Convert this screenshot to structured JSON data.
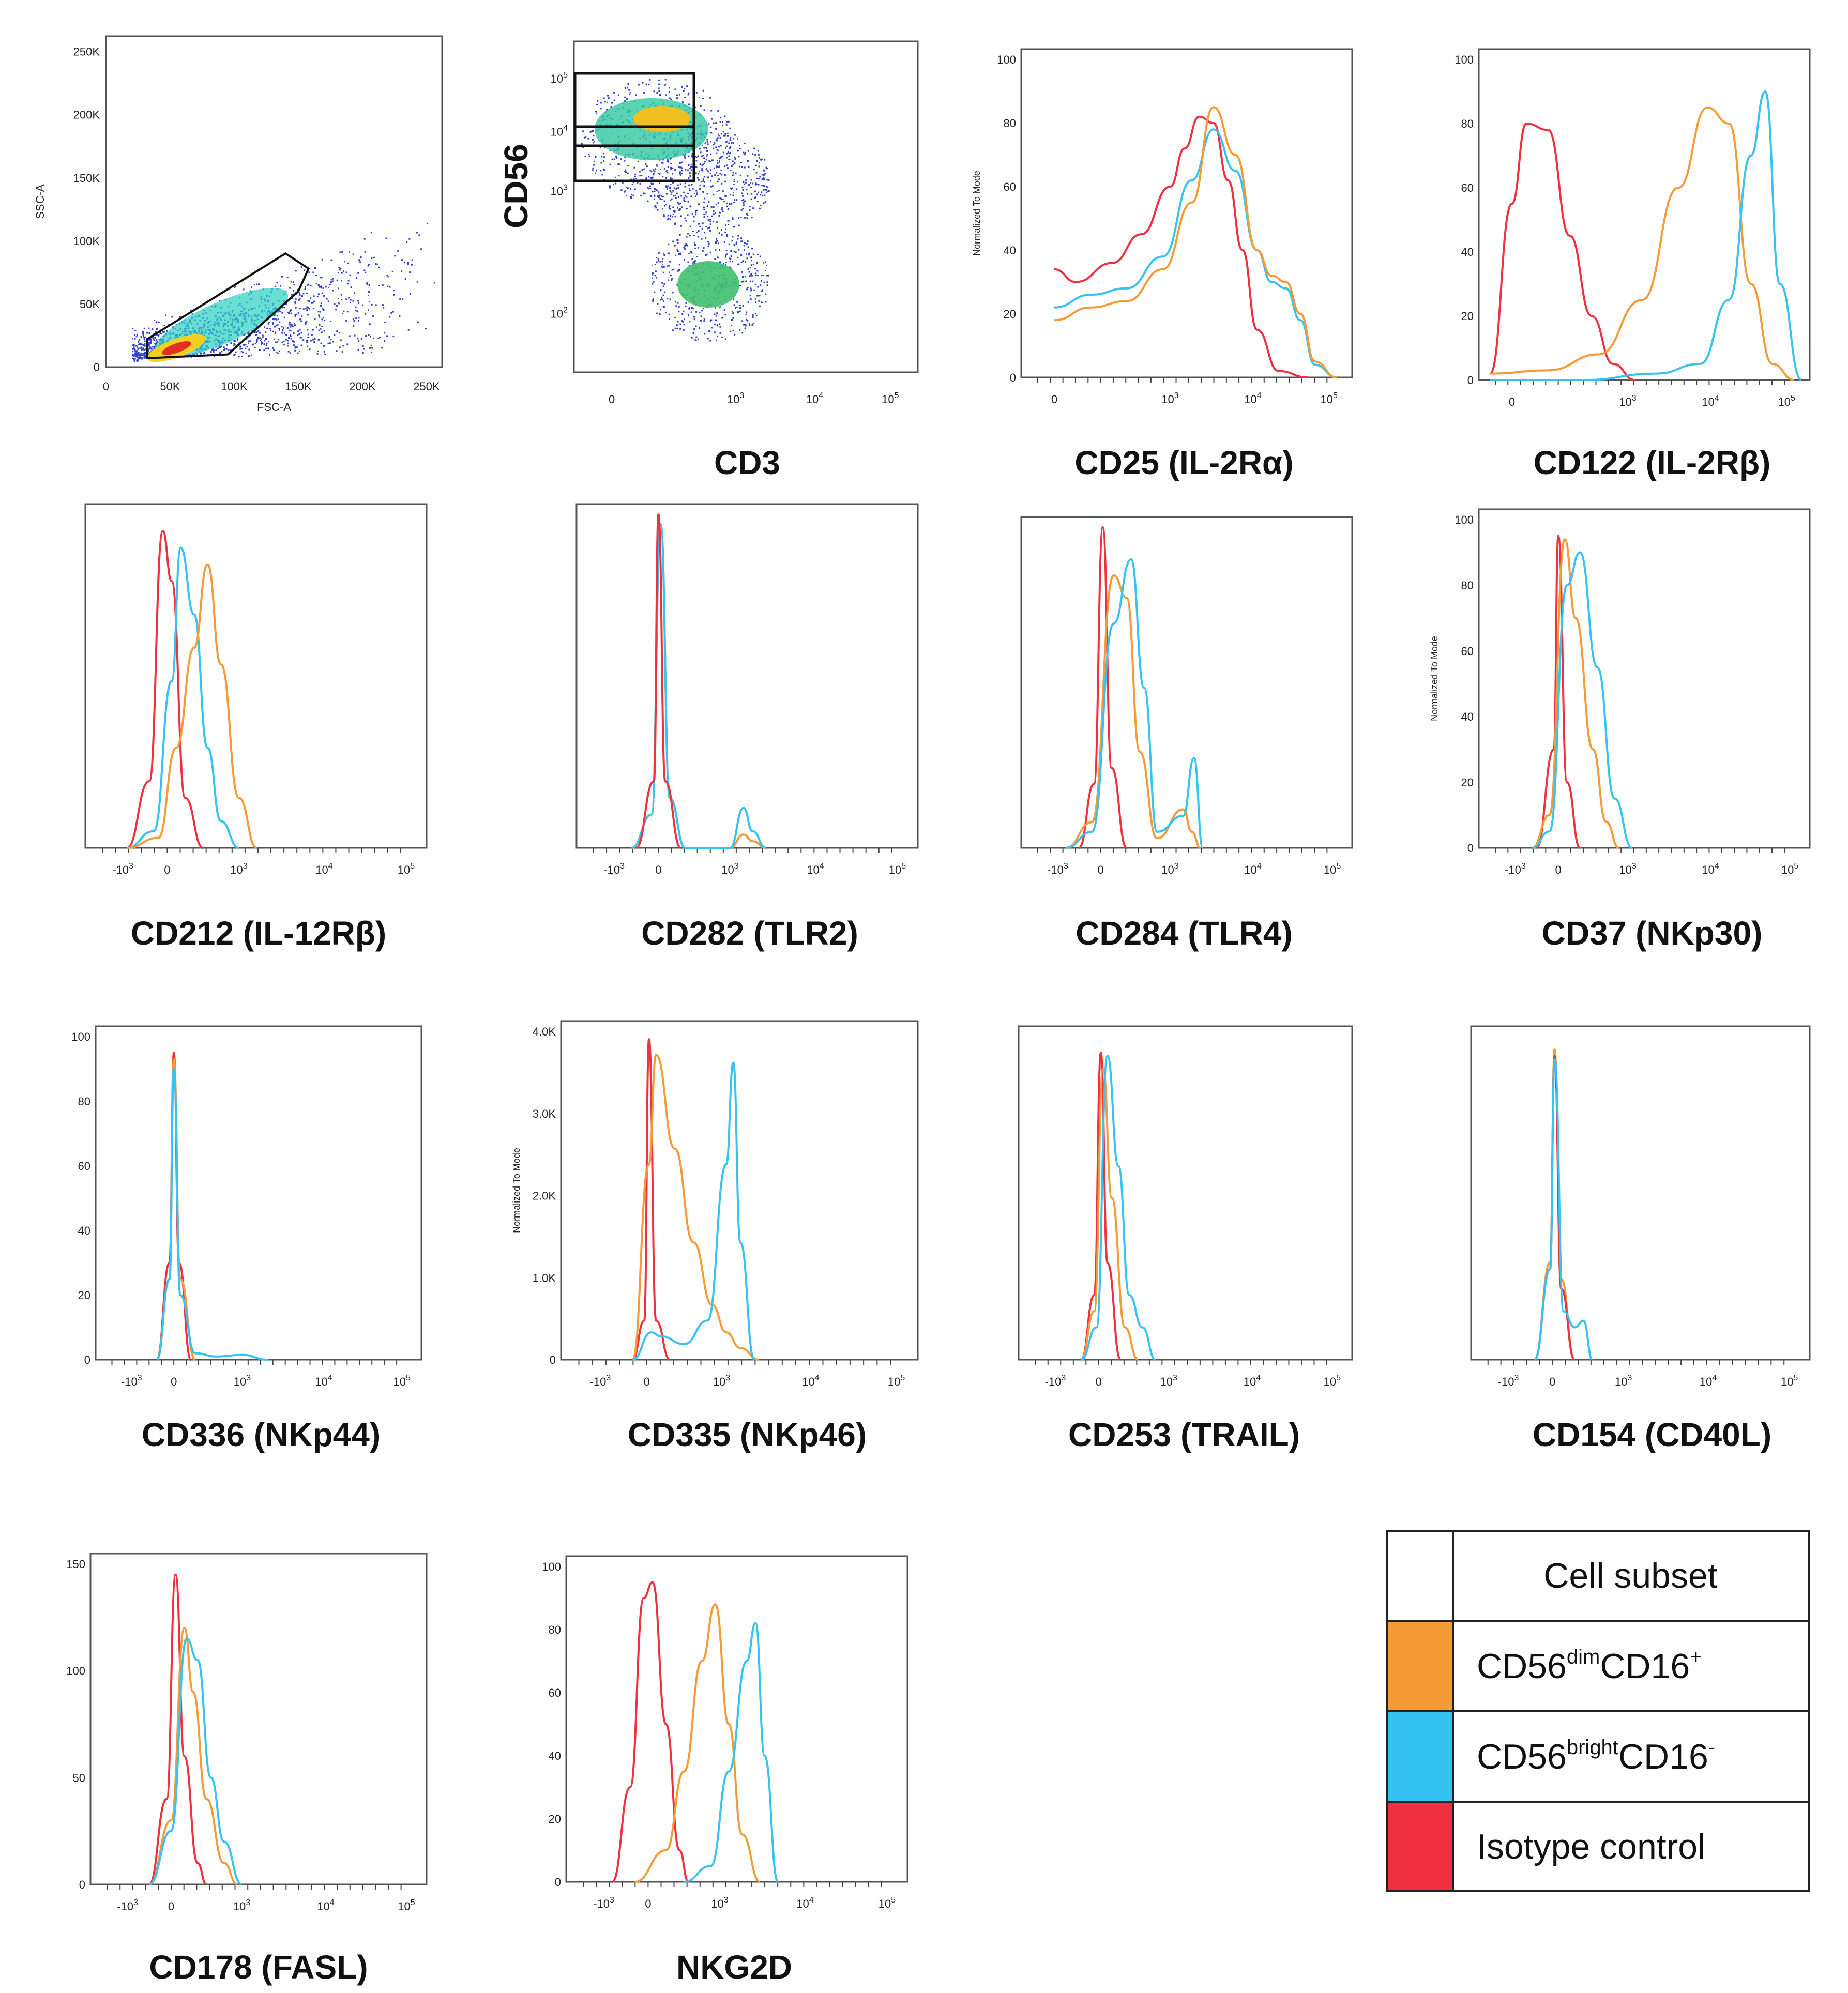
{
  "colors": {
    "dim": "#F59A35",
    "bright": "#35C3F2",
    "iso": "#F0303E"
  },
  "legend": {
    "header": "Cell subset",
    "dim": {
      "a": "CD56",
      "b": "dim",
      "c": "CD16",
      "d": "+"
    },
    "bright": {
      "a": "CD56",
      "b": "bright",
      "c": "CD16",
      "d": "-"
    },
    "iso": "Isotype  control"
  },
  "chart_data": [
    {
      "type": "scatter",
      "title": "",
      "xlabel": "FSC-A",
      "ylabel": "SSC-A",
      "xlim": [
        0,
        262144
      ],
      "ylim": [
        0,
        262144
      ],
      "xticks": [
        "0",
        "50K",
        "100K",
        "150K",
        "200K",
        "250K"
      ],
      "yticks": [
        "0",
        "50K",
        "100K",
        "150K",
        "200K",
        "250K"
      ],
      "gate": {
        "name": "lymphocyte gate",
        "x": [
          32000,
          140000,
          158000,
          150000,
          95000,
          32000
        ],
        "y": [
          22000,
          90000,
          78000,
          60000,
          10000,
          7000
        ]
      },
      "note": "density dot plot, main population near (55K, 15K)"
    },
    {
      "type": "scatter",
      "title": "",
      "xlabel": "CD3",
      "ylabel": "CD56",
      "scale": "biexponential",
      "xticks": [
        "0",
        "10^3",
        "10^4",
        "10^5"
      ],
      "yticks": [
        "10^2",
        "10^3",
        "10^4",
        "10^5"
      ],
      "gates": [
        "CD56bright CD3- gate",
        "CD56dim CD3- gate"
      ],
      "note": "density dot plot of lymphocytes"
    },
    {
      "type": "line",
      "title": "",
      "xlabel": "CD25 (IL-2Rα)",
      "ylabel": "Normalized To Mode",
      "ylim": [
        0,
        100
      ],
      "yticks": [
        "0",
        "20",
        "40",
        "60",
        "80",
        "100"
      ],
      "xticks": [
        "0",
        "10^3",
        "10^4",
        "10^5"
      ],
      "series": [
        {
          "name": "Isotype control",
          "color": "iso",
          "x": [
            0,
            0.3,
            0.8,
            1.2,
            1.6,
            1.8,
            2.0,
            2.2,
            2.4,
            2.6,
            2.8,
            3.1,
            3.5
          ],
          "y": [
            34,
            30,
            36,
            45,
            60,
            72,
            82,
            80,
            62,
            40,
            15,
            2,
            0
          ]
        },
        {
          "name": "CD56brightCD16-",
          "color": "bright",
          "x": [
            0,
            0.5,
            1.0,
            1.5,
            1.9,
            2.2,
            2.5,
            2.8,
            3.0,
            3.2,
            3.4,
            3.6,
            3.9
          ],
          "y": [
            22,
            26,
            28,
            38,
            62,
            78,
            65,
            40,
            30,
            28,
            18,
            4,
            0
          ]
        },
        {
          "name": "CD56dimCD16+",
          "color": "dim",
          "x": [
            0,
            0.5,
            1.0,
            1.5,
            1.9,
            2.2,
            2.5,
            2.8,
            3.0,
            3.2,
            3.4,
            3.6,
            3.9
          ],
          "y": [
            18,
            22,
            24,
            34,
            55,
            85,
            70,
            40,
            32,
            30,
            20,
            5,
            0
          ]
        }
      ]
    },
    {
      "type": "line",
      "title": "",
      "xlabel": "CD122 (IL-2Rβ)",
      "ylabel": "",
      "ylim": [
        0,
        100
      ],
      "yticks": [
        "0",
        "20",
        "40",
        "60",
        "80",
        "100"
      ],
      "xticks": [
        "0",
        "10^3",
        "10^4",
        "10^5"
      ],
      "series": [
        {
          "name": "Isotype control",
          "color": "iso",
          "x": [
            -0.3,
            0,
            0.2,
            0.5,
            0.8,
            1.1,
            1.4,
            1.7
          ],
          "y": [
            2,
            55,
            80,
            78,
            45,
            20,
            5,
            0
          ]
        },
        {
          "name": "CD56dimCD16+",
          "color": "dim",
          "x": [
            -0.3,
            0.5,
            1.2,
            1.8,
            2.3,
            2.7,
            3.0,
            3.3,
            3.6,
            3.9
          ],
          "y": [
            2,
            3,
            8,
            25,
            60,
            85,
            80,
            30,
            5,
            0
          ]
        },
        {
          "name": "CD56brightCD16-",
          "color": "bright",
          "x": [
            -0.3,
            1.0,
            2.0,
            2.6,
            3.0,
            3.3,
            3.5,
            3.7,
            4.0
          ],
          "y": [
            0,
            0,
            2,
            5,
            25,
            70,
            90,
            30,
            0
          ]
        }
      ]
    },
    {
      "type": "line",
      "title": "",
      "xlabel": "CD212 (IL-12Rβ)",
      "ylabel": "",
      "ylim": [
        0,
        100
      ],
      "xticks": [
        "-10^3",
        "0",
        "10^3",
        "10^4",
        "10^5"
      ],
      "series": [
        {
          "name": "Isotype control",
          "color": "iso",
          "x": [
            -0.9,
            -0.4,
            -0.1,
            0.1,
            0.4,
            0.8
          ],
          "y": [
            0,
            20,
            95,
            80,
            15,
            0
          ]
        },
        {
          "name": "CD56brightCD16-",
          "color": "bright",
          "x": [
            -0.9,
            -0.3,
            0.1,
            0.3,
            0.6,
            0.9,
            1.2,
            1.6
          ],
          "y": [
            0,
            5,
            50,
            90,
            70,
            30,
            8,
            0
          ]
        },
        {
          "name": "CD56dimCD16+",
          "color": "dim",
          "x": [
            -0.9,
            -0.2,
            0.2,
            0.6,
            0.9,
            1.2,
            1.6,
            2.0
          ],
          "y": [
            0,
            3,
            30,
            60,
            85,
            55,
            15,
            0
          ]
        }
      ]
    },
    {
      "type": "line",
      "title": "",
      "xlabel": "CD282 (TLR2)",
      "ylabel": "",
      "ylim": [
        0,
        100
      ],
      "xticks": [
        "-10^3",
        "0",
        "10^3",
        "10^4",
        "10^5"
      ],
      "series": [
        {
          "name": "CD56dimCD16+",
          "color": "dim",
          "x": [
            -0.6,
            -0.15,
            0.05,
            0.25,
            0.6,
            1.6,
            1.9,
            2.1,
            2.4
          ],
          "y": [
            0,
            10,
            97,
            15,
            0,
            0,
            4,
            2,
            0
          ]
        },
        {
          "name": "CD56brightCD16-",
          "color": "bright",
          "x": [
            -0.6,
            -0.15,
            0.05,
            0.25,
            0.6,
            1.6,
            1.9,
            2.1,
            2.4
          ],
          "y": [
            0,
            10,
            97,
            15,
            0,
            0,
            12,
            5,
            0
          ]
        },
        {
          "name": "Isotype control",
          "color": "iso",
          "x": [
            -0.5,
            -0.1,
            0.0,
            0.15,
            0.5
          ],
          "y": [
            0,
            20,
            100,
            20,
            0
          ]
        }
      ]
    },
    {
      "type": "line",
      "title": "",
      "xlabel": "CD284 (TLR4)",
      "ylabel": "",
      "ylim": [
        0,
        100
      ],
      "xticks": [
        "-10^3",
        "0",
        "10^3",
        "10^4",
        "10^5"
      ],
      "series": [
        {
          "name": "Isotype control",
          "color": "iso",
          "x": [
            -0.5,
            -0.15,
            0.05,
            0.25,
            0.6
          ],
          "y": [
            0,
            20,
            100,
            25,
            0
          ]
        },
        {
          "name": "CD56dimCD16+",
          "color": "dim",
          "x": [
            -0.8,
            -0.2,
            0.3,
            0.6,
            0.9,
            1.3,
            1.9,
            2.1,
            2.3
          ],
          "y": [
            0,
            8,
            85,
            78,
            30,
            3,
            12,
            5,
            0
          ]
        },
        {
          "name": "CD56brightCD16-",
          "color": "bright",
          "x": [
            -0.8,
            -0.2,
            0.3,
            0.7,
            1.0,
            1.3,
            1.9,
            2.15,
            2.35
          ],
          "y": [
            0,
            5,
            70,
            90,
            50,
            5,
            10,
            28,
            0
          ]
        }
      ]
    },
    {
      "type": "line",
      "title": "",
      "xlabel": "CD37 (NKp30)",
      "ylabel": "Normalized To Mode",
      "ylim": [
        0,
        100
      ],
      "yticks": [
        "0",
        "20",
        "40",
        "60",
        "80",
        "100"
      ],
      "xticks": [
        "-10^3",
        "0",
        "10^3",
        "10^4",
        "10^5"
      ],
      "series": [
        {
          "name": "Isotype control",
          "color": "iso",
          "x": [
            -0.5,
            -0.1,
            0.0,
            0.2,
            0.5
          ],
          "y": [
            0,
            30,
            95,
            20,
            0
          ]
        },
        {
          "name": "CD56dimCD16+",
          "color": "dim",
          "x": [
            -0.6,
            -0.2,
            0.15,
            0.4,
            0.8,
            1.1,
            1.4
          ],
          "y": [
            0,
            10,
            94,
            70,
            30,
            8,
            0
          ]
        },
        {
          "name": "CD56brightCD16-",
          "color": "bright",
          "x": [
            -0.6,
            -0.2,
            0.2,
            0.5,
            0.9,
            1.3,
            1.7
          ],
          "y": [
            0,
            5,
            80,
            90,
            55,
            15,
            0
          ]
        }
      ]
    },
    {
      "type": "line",
      "title": "",
      "xlabel": "CD336 (NKp44)",
      "ylabel": "",
      "ylim": [
        0,
        100
      ],
      "yticks": [
        "0",
        "20",
        "40",
        "60",
        "80",
        "100"
      ],
      "xticks": [
        "-10^3",
        "0",
        "10^3",
        "10^4",
        "10^5"
      ],
      "series": [
        {
          "name": "Isotype control",
          "color": "iso",
          "x": [
            -0.4,
            -0.1,
            0.0,
            0.12,
            0.4
          ],
          "y": [
            0,
            30,
            95,
            30,
            0
          ]
        },
        {
          "name": "CD56dimCD16+",
          "color": "dim",
          "x": [
            -0.4,
            -0.1,
            0.0,
            0.15,
            0.5
          ],
          "y": [
            0,
            25,
            93,
            25,
            0
          ]
        },
        {
          "name": "CD56brightCD16-",
          "color": "bright",
          "x": [
            -0.4,
            -0.1,
            0.0,
            0.15,
            0.5,
            1.0,
            1.6,
            2.2
          ],
          "y": [
            0,
            25,
            90,
            20,
            2,
            1,
            1.5,
            0
          ]
        }
      ]
    },
    {
      "type": "line",
      "title": "",
      "xlabel": "CD335 (NKp46)",
      "ylabel": "Normalized To Mode",
      "ylim": [
        0,
        4200
      ],
      "yticks": [
        "0",
        "1.0K",
        "2.0K",
        "3.0K",
        "4.0K"
      ],
      "xticks": [
        "-10^3",
        "0",
        "10^3",
        "10^4",
        "10^5"
      ],
      "series": [
        {
          "name": "Isotype control",
          "color": "iso",
          "x": [
            -0.3,
            -0.05,
            0.05,
            0.2,
            0.5
          ],
          "y": [
            0,
            500,
            4100,
            500,
            0
          ]
        },
        {
          "name": "CD56dimCD16+",
          "color": "dim",
          "x": [
            -0.3,
            0.05,
            0.2,
            0.6,
            1.0,
            1.4,
            1.7,
            2.0,
            2.4
          ],
          "y": [
            0,
            2500,
            3900,
            2700,
            1500,
            700,
            350,
            150,
            0
          ]
        },
        {
          "name": "CD56brightCD16-",
          "color": "bright",
          "x": [
            -0.3,
            0.1,
            0.3,
            0.8,
            1.3,
            1.7,
            1.85,
            2.0,
            2.3
          ],
          "y": [
            0,
            350,
            300,
            200,
            500,
            2500,
            3800,
            1500,
            0
          ]
        }
      ]
    },
    {
      "type": "line",
      "title": "",
      "xlabel": "CD253 (TRAIL)",
      "ylabel": "",
      "ylim": [
        0,
        100
      ],
      "xticks": [
        "-10^3",
        "0",
        "10^3",
        "10^4",
        "10^5"
      ],
      "series": [
        {
          "name": "Isotype control",
          "color": "iso",
          "x": [
            -0.4,
            -0.1,
            0.05,
            0.2,
            0.5
          ],
          "y": [
            0,
            20,
            95,
            30,
            0
          ]
        },
        {
          "name": "CD56dimCD16+",
          "color": "dim",
          "x": [
            -0.4,
            -0.1,
            0.1,
            0.3,
            0.6,
            0.9
          ],
          "y": [
            0,
            15,
            90,
            50,
            10,
            0
          ]
        },
        {
          "name": "CD56brightCD16-",
          "color": "bright",
          "x": [
            -0.4,
            -0.05,
            0.2,
            0.45,
            0.7,
            1.0,
            1.3
          ],
          "y": [
            0,
            10,
            94,
            60,
            20,
            10,
            0
          ]
        }
      ]
    },
    {
      "type": "line",
      "title": "",
      "xlabel": "CD154 (CD40L)",
      "ylabel": "",
      "ylim": [
        0,
        100
      ],
      "xticks": [
        "-10^3",
        "0",
        "10^3",
        "10^4",
        "10^5"
      ],
      "series": [
        {
          "name": "CD56dimCD16+",
          "color": "dim",
          "x": [
            -0.4,
            -0.05,
            0.05,
            0.2,
            0.5
          ],
          "y": [
            0,
            30,
            96,
            25,
            0
          ]
        },
        {
          "name": "Isotype control",
          "color": "iso",
          "x": [
            -0.4,
            -0.05,
            0.05,
            0.2,
            0.5
          ],
          "y": [
            0,
            28,
            94,
            22,
            0
          ]
        },
        {
          "name": "CD56brightCD16-",
          "color": "bright",
          "x": [
            -0.4,
            -0.05,
            0.05,
            0.25,
            0.5,
            0.7,
            0.9
          ],
          "y": [
            0,
            28,
            93,
            15,
            10,
            12,
            0
          ]
        }
      ]
    },
    {
      "type": "line",
      "title": "",
      "xlabel": "CD178 (FASL)",
      "ylabel": "",
      "ylim": [
        0,
        150
      ],
      "yticks": [
        "0",
        "50",
        "100",
        "150"
      ],
      "xticks": [
        "-10^3",
        "0",
        "10^3",
        "10^4",
        "10^5"
      ],
      "series": [
        {
          "name": "Isotype control",
          "color": "iso",
          "x": [
            -0.5,
            -0.1,
            0.1,
            0.3,
            0.6,
            0.8
          ],
          "y": [
            0,
            40,
            145,
            60,
            10,
            0
          ]
        },
        {
          "name": "CD56dimCD16+",
          "color": "dim",
          "x": [
            -0.5,
            0.0,
            0.3,
            0.5,
            0.8,
            1.2,
            1.5
          ],
          "y": [
            0,
            30,
            120,
            90,
            40,
            10,
            0
          ]
        },
        {
          "name": "CD56brightCD16-",
          "color": "bright",
          "x": [
            -0.5,
            0.0,
            0.35,
            0.6,
            0.9,
            1.2,
            1.6
          ],
          "y": [
            0,
            25,
            115,
            105,
            50,
            20,
            0
          ]
        }
      ]
    },
    {
      "type": "line",
      "title": "",
      "xlabel": "NKG2D",
      "ylabel": "",
      "ylim": [
        0,
        100
      ],
      "yticks": [
        "0",
        "20",
        "40",
        "60",
        "80",
        "100"
      ],
      "xticks": [
        "-10^3",
        "0",
        "10^3",
        "10^4",
        "10^5"
      ],
      "series": [
        {
          "name": "Isotype control",
          "color": "iso",
          "x": [
            -0.8,
            -0.4,
            -0.1,
            0.1,
            0.4,
            0.7,
            0.9
          ],
          "y": [
            0,
            30,
            90,
            95,
            50,
            10,
            0
          ]
        },
        {
          "name": "CD56dimCD16+",
          "color": "dim",
          "x": [
            -0.3,
            0.4,
            0.8,
            1.2,
            1.5,
            1.8,
            2.1,
            2.5
          ],
          "y": [
            0,
            10,
            35,
            70,
            88,
            50,
            15,
            0
          ]
        },
        {
          "name": "CD56brightCD16-",
          "color": "bright",
          "x": [
            0.8,
            1.4,
            1.8,
            2.2,
            2.4,
            2.6,
            2.9
          ],
          "y": [
            0,
            5,
            35,
            70,
            82,
            40,
            0
          ]
        }
      ]
    }
  ]
}
